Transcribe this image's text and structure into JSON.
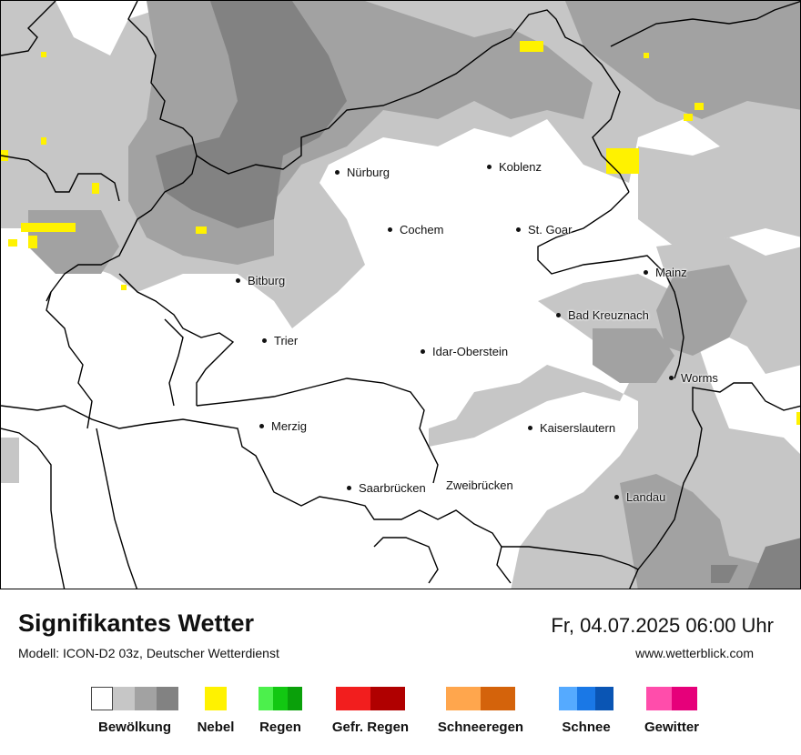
{
  "map": {
    "cities": [
      {
        "name": "Nürburg"
      },
      {
        "name": "Koblenz"
      },
      {
        "name": "Cochem"
      },
      {
        "name": "St. Goar"
      },
      {
        "name": "Bitburg"
      },
      {
        "name": "Mainz"
      },
      {
        "name": "Bad Kreuznach"
      },
      {
        "name": "Trier"
      },
      {
        "name": "Idar-Oberstein"
      },
      {
        "name": "Worms"
      },
      {
        "name": "Merzig"
      },
      {
        "name": "Kaiserslautern"
      },
      {
        "name": "Saarbrücken"
      },
      {
        "name": "Zweibrücken"
      },
      {
        "name": "Landau"
      }
    ],
    "colors": {
      "cloud_light": "#c6c6c6",
      "cloud_mid": "#a2a2a2",
      "cloud_dark": "#828282",
      "fog": "#fff200",
      "border": "#000000"
    }
  },
  "header": {
    "title": "Signifikantes Wetter",
    "model": "Modell: ICON-D2 03z, Deutscher Wetterdienst",
    "datetime": "Fr, 04.07.2025 06:00 Uhr",
    "website": "www.wetterblick.com"
  },
  "legend": [
    {
      "label": "Bewölkung",
      "colors": [
        "#ffffff",
        "#c6c6c6",
        "#a2a2a2",
        "#828282"
      ]
    },
    {
      "label": "Nebel",
      "colors": [
        "#fff200"
      ]
    },
    {
      "label": "Regen",
      "colors": [
        "#4cf04c",
        "#12c812",
        "#0aa00a"
      ]
    },
    {
      "label": "Gefr. Regen",
      "colors": [
        "#f21e1e",
        "#b00000"
      ]
    },
    {
      "label": "Schneeregen",
      "colors": [
        "#ffa64d",
        "#d4630b"
      ]
    },
    {
      "label": "Schnee",
      "colors": [
        "#55aaff",
        "#1a78e6",
        "#0a55b4"
      ]
    },
    {
      "label": "Gewitter",
      "colors": [
        "#ff4dab",
        "#e6007a"
      ]
    }
  ]
}
